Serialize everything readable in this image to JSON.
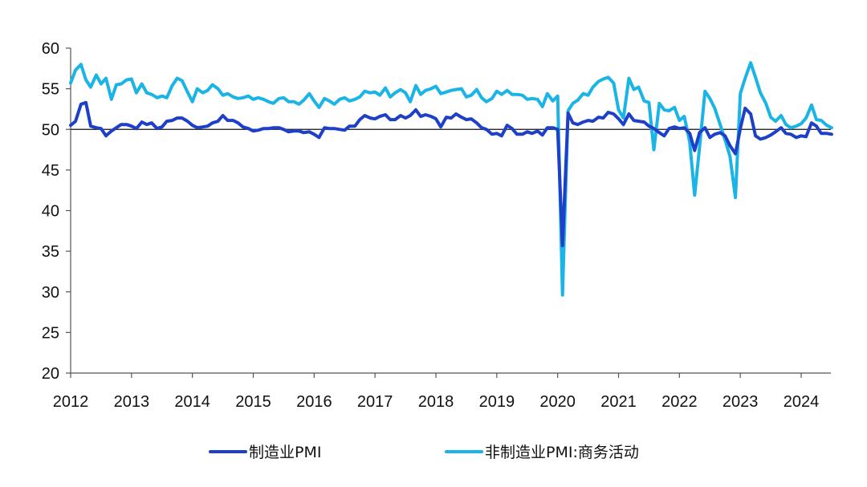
{
  "chart_data": {
    "type": "line",
    "title": "",
    "xlabel": "",
    "ylabel": "",
    "ylim": [
      20,
      60
    ],
    "y_ticks": [
      "60",
      "55",
      "50",
      "45",
      "40",
      "35",
      "30",
      "25",
      "20"
    ],
    "x_ticks": [
      "2012",
      "2013",
      "2014",
      "2015",
      "2016",
      "2017",
      "2018",
      "2019",
      "2020",
      "2021",
      "2022",
      "2023",
      "2024"
    ],
    "x_range": [
      "2012-01",
      "2024-06"
    ],
    "reference_line_y": 50,
    "grid": false,
    "legend_position": "bottom",
    "series": [
      {
        "name": "制造业PMI",
        "color": "#1e3fc8",
        "values": [
          [
            2012.0,
            50.5
          ],
          [
            2012.08,
            51.0
          ],
          [
            2012.17,
            53.1
          ],
          [
            2012.25,
            53.3
          ],
          [
            2012.33,
            50.4
          ],
          [
            2012.42,
            50.2
          ],
          [
            2012.5,
            50.1
          ],
          [
            2012.58,
            49.2
          ],
          [
            2012.67,
            49.8
          ],
          [
            2012.75,
            50.2
          ],
          [
            2012.83,
            50.6
          ],
          [
            2012.92,
            50.6
          ],
          [
            2013.0,
            50.4
          ],
          [
            2013.08,
            50.1
          ],
          [
            2013.17,
            50.9
          ],
          [
            2013.25,
            50.6
          ],
          [
            2013.33,
            50.8
          ],
          [
            2013.42,
            50.1
          ],
          [
            2013.5,
            50.3
          ],
          [
            2013.58,
            51.0
          ],
          [
            2013.67,
            51.1
          ],
          [
            2013.75,
            51.4
          ],
          [
            2013.83,
            51.4
          ],
          [
            2013.92,
            51.0
          ],
          [
            2014.0,
            50.5
          ],
          [
            2014.08,
            50.2
          ],
          [
            2014.17,
            50.3
          ],
          [
            2014.25,
            50.4
          ],
          [
            2014.33,
            50.8
          ],
          [
            2014.42,
            51.0
          ],
          [
            2014.5,
            51.7
          ],
          [
            2014.58,
            51.1
          ],
          [
            2014.67,
            51.1
          ],
          [
            2014.75,
            50.8
          ],
          [
            2014.83,
            50.3
          ],
          [
            2014.92,
            50.1
          ],
          [
            2015.0,
            49.8
          ],
          [
            2015.08,
            49.9
          ],
          [
            2015.17,
            50.1
          ],
          [
            2015.25,
            50.1
          ],
          [
            2015.33,
            50.2
          ],
          [
            2015.42,
            50.2
          ],
          [
            2015.5,
            50.0
          ],
          [
            2015.58,
            49.7
          ],
          [
            2015.67,
            49.8
          ],
          [
            2015.75,
            49.8
          ],
          [
            2015.83,
            49.6
          ],
          [
            2015.92,
            49.7
          ],
          [
            2016.0,
            49.4
          ],
          [
            2016.08,
            49.0
          ],
          [
            2016.17,
            50.2
          ],
          [
            2016.25,
            50.1
          ],
          [
            2016.33,
            50.1
          ],
          [
            2016.42,
            50.0
          ],
          [
            2016.5,
            49.9
          ],
          [
            2016.58,
            50.4
          ],
          [
            2016.67,
            50.4
          ],
          [
            2016.75,
            51.2
          ],
          [
            2016.83,
            51.7
          ],
          [
            2016.92,
            51.4
          ],
          [
            2017.0,
            51.3
          ],
          [
            2017.08,
            51.6
          ],
          [
            2017.17,
            51.8
          ],
          [
            2017.25,
            51.2
          ],
          [
            2017.33,
            51.2
          ],
          [
            2017.42,
            51.7
          ],
          [
            2017.5,
            51.4
          ],
          [
            2017.58,
            51.7
          ],
          [
            2017.67,
            52.4
          ],
          [
            2017.75,
            51.6
          ],
          [
            2017.83,
            51.8
          ],
          [
            2017.92,
            51.6
          ],
          [
            2018.0,
            51.3
          ],
          [
            2018.08,
            50.3
          ],
          [
            2018.17,
            51.5
          ],
          [
            2018.25,
            51.4
          ],
          [
            2018.33,
            51.9
          ],
          [
            2018.42,
            51.5
          ],
          [
            2018.5,
            51.2
          ],
          [
            2018.58,
            51.3
          ],
          [
            2018.67,
            50.8
          ],
          [
            2018.75,
            50.2
          ],
          [
            2018.83,
            50.0
          ],
          [
            2018.92,
            49.4
          ],
          [
            2019.0,
            49.5
          ],
          [
            2019.08,
            49.2
          ],
          [
            2019.17,
            50.5
          ],
          [
            2019.25,
            50.1
          ],
          [
            2019.33,
            49.4
          ],
          [
            2019.42,
            49.4
          ],
          [
            2019.5,
            49.7
          ],
          [
            2019.58,
            49.5
          ],
          [
            2019.67,
            49.8
          ],
          [
            2019.75,
            49.3
          ],
          [
            2019.83,
            50.2
          ],
          [
            2019.92,
            50.2
          ],
          [
            2020.0,
            50.0
          ],
          [
            2020.08,
            35.7
          ],
          [
            2020.17,
            52.0
          ],
          [
            2020.25,
            50.8
          ],
          [
            2020.33,
            50.6
          ],
          [
            2020.42,
            50.9
          ],
          [
            2020.5,
            51.1
          ],
          [
            2020.58,
            51.0
          ],
          [
            2020.67,
            51.5
          ],
          [
            2020.75,
            51.4
          ],
          [
            2020.83,
            52.1
          ],
          [
            2020.92,
            51.9
          ],
          [
            2021.0,
            51.3
          ],
          [
            2021.08,
            50.6
          ],
          [
            2021.17,
            51.9
          ],
          [
            2021.25,
            51.1
          ],
          [
            2021.33,
            51.0
          ],
          [
            2021.42,
            50.9
          ],
          [
            2021.5,
            50.4
          ],
          [
            2021.58,
            50.1
          ],
          [
            2021.67,
            49.6
          ],
          [
            2021.75,
            49.2
          ],
          [
            2021.83,
            50.1
          ],
          [
            2021.92,
            50.3
          ],
          [
            2022.0,
            50.1
          ],
          [
            2022.08,
            50.2
          ],
          [
            2022.17,
            49.5
          ],
          [
            2022.25,
            47.4
          ],
          [
            2022.33,
            49.6
          ],
          [
            2022.42,
            50.2
          ],
          [
            2022.5,
            49.0
          ],
          [
            2022.58,
            49.4
          ],
          [
            2022.67,
            49.6
          ],
          [
            2022.75,
            49.2
          ],
          [
            2022.83,
            48.0
          ],
          [
            2022.92,
            47.0
          ],
          [
            2023.0,
            50.1
          ],
          [
            2023.08,
            52.6
          ],
          [
            2023.17,
            51.9
          ],
          [
            2023.25,
            49.2
          ],
          [
            2023.33,
            48.8
          ],
          [
            2023.42,
            49.0
          ],
          [
            2023.5,
            49.3
          ],
          [
            2023.58,
            49.7
          ],
          [
            2023.67,
            50.2
          ],
          [
            2023.75,
            49.5
          ],
          [
            2023.83,
            49.4
          ],
          [
            2023.92,
            49.0
          ],
          [
            2024.0,
            49.2
          ],
          [
            2024.08,
            49.1
          ],
          [
            2024.17,
            50.8
          ],
          [
            2024.25,
            50.4
          ],
          [
            2024.33,
            49.5
          ],
          [
            2024.42,
            49.5
          ],
          [
            2024.5,
            49.4
          ]
        ]
      },
      {
        "name": "非制造业PMI:商务活动",
        "color": "#1ab4e6",
        "values": [
          [
            2012.0,
            55.7
          ],
          [
            2012.08,
            57.3
          ],
          [
            2012.17,
            58.0
          ],
          [
            2012.25,
            56.1
          ],
          [
            2012.33,
            55.2
          ],
          [
            2012.42,
            56.7
          ],
          [
            2012.5,
            55.6
          ],
          [
            2012.58,
            56.3
          ],
          [
            2012.67,
            53.7
          ],
          [
            2012.75,
            55.5
          ],
          [
            2012.83,
            55.6
          ],
          [
            2012.92,
            56.1
          ],
          [
            2013.0,
            56.2
          ],
          [
            2013.08,
            54.5
          ],
          [
            2013.17,
            55.6
          ],
          [
            2013.25,
            54.5
          ],
          [
            2013.33,
            54.3
          ],
          [
            2013.42,
            53.9
          ],
          [
            2013.5,
            54.1
          ],
          [
            2013.58,
            53.9
          ],
          [
            2013.67,
            55.4
          ],
          [
            2013.75,
            56.3
          ],
          [
            2013.83,
            56.0
          ],
          [
            2013.92,
            54.6
          ],
          [
            2014.0,
            53.4
          ],
          [
            2014.08,
            55.0
          ],
          [
            2014.17,
            54.5
          ],
          [
            2014.25,
            54.8
          ],
          [
            2014.33,
            55.5
          ],
          [
            2014.42,
            55.0
          ],
          [
            2014.5,
            54.2
          ],
          [
            2014.58,
            54.4
          ],
          [
            2014.67,
            54.0
          ],
          [
            2014.75,
            53.8
          ],
          [
            2014.83,
            53.9
          ],
          [
            2014.92,
            54.1
          ],
          [
            2015.0,
            53.7
          ],
          [
            2015.08,
            53.9
          ],
          [
            2015.17,
            53.7
          ],
          [
            2015.25,
            53.4
          ],
          [
            2015.33,
            53.2
          ],
          [
            2015.42,
            53.8
          ],
          [
            2015.5,
            53.9
          ],
          [
            2015.58,
            53.4
          ],
          [
            2015.67,
            53.4
          ],
          [
            2015.75,
            53.1
          ],
          [
            2015.83,
            53.6
          ],
          [
            2015.92,
            54.4
          ],
          [
            2016.0,
            53.5
          ],
          [
            2016.08,
            52.7
          ],
          [
            2016.17,
            53.8
          ],
          [
            2016.25,
            53.5
          ],
          [
            2016.33,
            53.1
          ],
          [
            2016.42,
            53.7
          ],
          [
            2016.5,
            53.9
          ],
          [
            2016.58,
            53.5
          ],
          [
            2016.67,
            53.7
          ],
          [
            2016.75,
            54.0
          ],
          [
            2016.83,
            54.7
          ],
          [
            2016.92,
            54.5
          ],
          [
            2017.0,
            54.6
          ],
          [
            2017.08,
            54.2
          ],
          [
            2017.17,
            55.1
          ],
          [
            2017.25,
            54.0
          ],
          [
            2017.33,
            54.5
          ],
          [
            2017.42,
            54.9
          ],
          [
            2017.5,
            54.5
          ],
          [
            2017.58,
            53.4
          ],
          [
            2017.67,
            55.4
          ],
          [
            2017.75,
            54.3
          ],
          [
            2017.83,
            54.8
          ],
          [
            2017.92,
            55.0
          ],
          [
            2018.0,
            55.3
          ],
          [
            2018.08,
            54.4
          ],
          [
            2018.17,
            54.6
          ],
          [
            2018.25,
            54.8
          ],
          [
            2018.33,
            54.9
          ],
          [
            2018.42,
            55.0
          ],
          [
            2018.5,
            54.0
          ],
          [
            2018.58,
            54.2
          ],
          [
            2018.67,
            54.9
          ],
          [
            2018.75,
            53.9
          ],
          [
            2018.83,
            53.4
          ],
          [
            2018.92,
            53.8
          ],
          [
            2019.0,
            54.7
          ],
          [
            2019.08,
            54.3
          ],
          [
            2019.17,
            54.8
          ],
          [
            2019.25,
            54.3
          ],
          [
            2019.33,
            54.3
          ],
          [
            2019.42,
            54.2
          ],
          [
            2019.5,
            53.7
          ],
          [
            2019.58,
            53.8
          ],
          [
            2019.67,
            53.7
          ],
          [
            2019.75,
            52.8
          ],
          [
            2019.83,
            54.4
          ],
          [
            2019.92,
            53.5
          ],
          [
            2020.0,
            54.1
          ],
          [
            2020.08,
            29.6
          ],
          [
            2020.17,
            52.3
          ],
          [
            2020.25,
            53.2
          ],
          [
            2020.33,
            53.6
          ],
          [
            2020.42,
            54.4
          ],
          [
            2020.5,
            54.2
          ],
          [
            2020.58,
            55.2
          ],
          [
            2020.67,
            55.9
          ],
          [
            2020.75,
            56.2
          ],
          [
            2020.83,
            56.4
          ],
          [
            2020.92,
            55.7
          ],
          [
            2021.0,
            52.4
          ],
          [
            2021.08,
            51.4
          ],
          [
            2021.17,
            56.3
          ],
          [
            2021.25,
            54.9
          ],
          [
            2021.33,
            55.2
          ],
          [
            2021.42,
            53.5
          ],
          [
            2021.5,
            53.3
          ],
          [
            2021.58,
            47.5
          ],
          [
            2021.67,
            53.2
          ],
          [
            2021.75,
            52.4
          ],
          [
            2021.83,
            52.3
          ],
          [
            2021.92,
            52.7
          ],
          [
            2022.0,
            51.1
          ],
          [
            2022.08,
            51.6
          ],
          [
            2022.17,
            48.4
          ],
          [
            2022.25,
            41.9
          ],
          [
            2022.33,
            47.8
          ],
          [
            2022.42,
            54.7
          ],
          [
            2022.5,
            53.8
          ],
          [
            2022.58,
            52.6
          ],
          [
            2022.67,
            50.6
          ],
          [
            2022.75,
            48.7
          ],
          [
            2022.83,
            46.7
          ],
          [
            2022.92,
            41.6
          ],
          [
            2023.0,
            54.4
          ],
          [
            2023.08,
            56.3
          ],
          [
            2023.17,
            58.2
          ],
          [
            2023.25,
            56.4
          ],
          [
            2023.33,
            54.5
          ],
          [
            2023.42,
            53.2
          ],
          [
            2023.5,
            51.5
          ],
          [
            2023.58,
            51.0
          ],
          [
            2023.67,
            51.7
          ],
          [
            2023.75,
            50.6
          ],
          [
            2023.83,
            50.2
          ],
          [
            2023.92,
            50.4
          ],
          [
            2024.0,
            50.7
          ],
          [
            2024.08,
            51.4
          ],
          [
            2024.17,
            53.0
          ],
          [
            2024.25,
            51.2
          ],
          [
            2024.33,
            51.1
          ],
          [
            2024.42,
            50.5
          ],
          [
            2024.5,
            50.2
          ]
        ]
      }
    ]
  }
}
